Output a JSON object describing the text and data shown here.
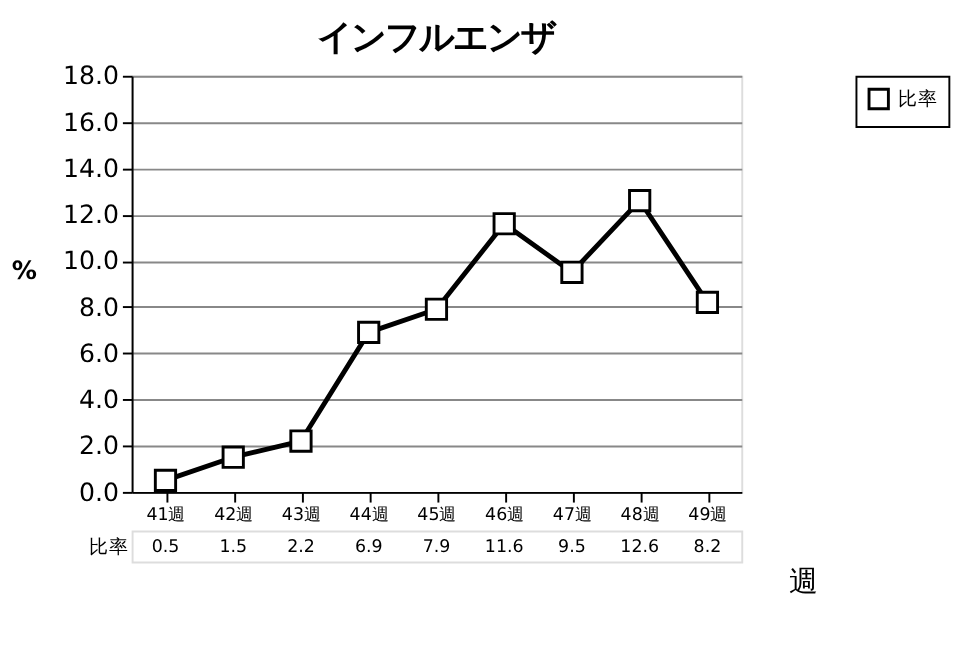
{
  "chart_data": {
    "type": "line",
    "title": "インフルエンザ",
    "xlabel": "週",
    "ylabel": "%",
    "categories": [
      "41週",
      "42週",
      "43週",
      "44週",
      "45週",
      "46週",
      "47週",
      "48週",
      "49週"
    ],
    "series": [
      {
        "name": "比率",
        "color": "#000000",
        "values": [
          0.5,
          1.5,
          2.2,
          6.9,
          7.9,
          11.6,
          9.5,
          12.6,
          8.2
        ]
      }
    ],
    "ylim": [
      0,
      18
    ],
    "yticks": [
      {
        "value": 0,
        "label": "0.0"
      },
      {
        "value": 2,
        "label": "2.0"
      },
      {
        "value": 4,
        "label": "4.0"
      },
      {
        "value": 6,
        "label": "6.0"
      },
      {
        "value": 8,
        "label": "8.0"
      },
      {
        "value": 10,
        "label": "10.0"
      },
      {
        "value": 12,
        "label": "12.0"
      },
      {
        "value": 14,
        "label": "14.0"
      },
      {
        "value": 16,
        "label": "16.0"
      },
      {
        "value": 18,
        "label": "18.0"
      }
    ],
    "grid": "y",
    "legend": "right",
    "marker": "square",
    "line_style": "solid",
    "data_labels": true
  }
}
